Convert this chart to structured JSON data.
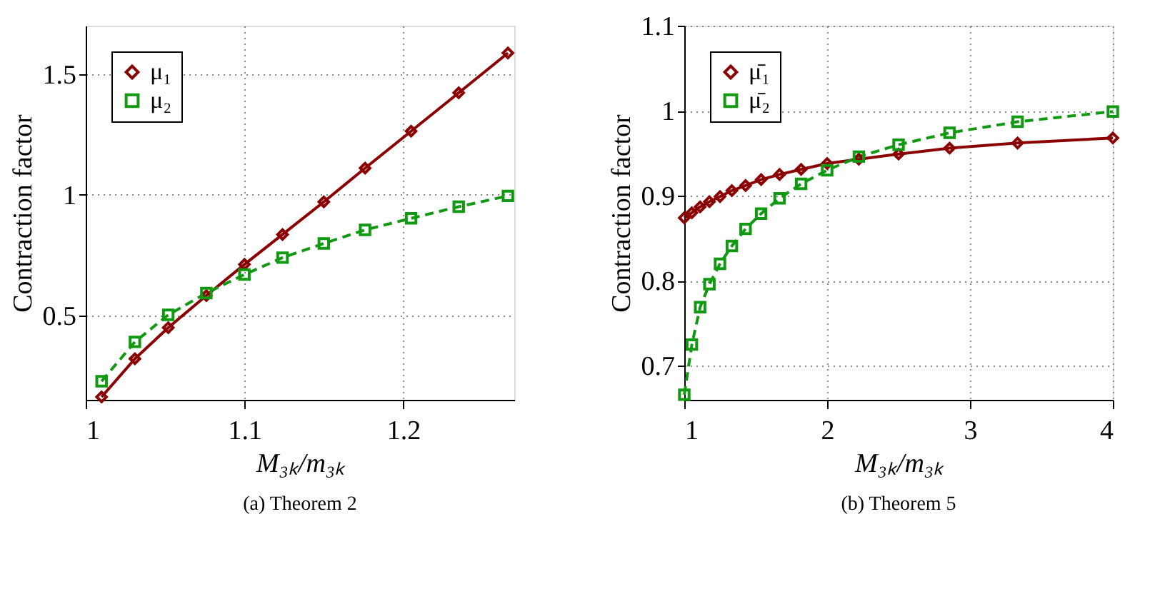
{
  "chart_data": [
    {
      "type": "line",
      "title": "(a) Theorem 2",
      "xlabel": "M₃ₖ/m₃ₖ",
      "ylabel": "Contraction factor",
      "x": [
        1.01,
        1.031,
        1.052,
        1.076,
        1.1,
        1.124,
        1.15,
        1.176,
        1.205,
        1.235,
        1.266
      ],
      "xlim": [
        1,
        1.27
      ],
      "xticks": [
        1,
        1.1,
        1.2
      ],
      "ylim": [
        0.15,
        1.7
      ],
      "yticks": [
        0.5,
        1,
        1.5
      ],
      "grid": true,
      "legend": "top left",
      "series": [
        {
          "name": "μ₁",
          "color": "#8b0000",
          "marker": "diamond",
          "line_style": "solid",
          "values": [
            0.162,
            0.32,
            0.449,
            0.582,
            0.711,
            0.835,
            0.97,
            1.11,
            1.263,
            1.422,
            1.587
          ]
        },
        {
          "name": "μ₂",
          "color": "#119911",
          "marker": "square",
          "line_style": "dashed",
          "values": [
            0.227,
            0.39,
            0.502,
            0.592,
            0.669,
            0.739,
            0.798,
            0.854,
            0.902,
            0.95,
            0.995
          ]
        }
      ]
    },
    {
      "type": "line",
      "title": "(b) Theorem 5",
      "xlabel": "M₃ₖ/m₃ₖ",
      "ylabel": "Contraction factor",
      "x": [
        1,
        1.053,
        1.111,
        1.176,
        1.25,
        1.333,
        1.429,
        1.538,
        1.667,
        1.818,
        2,
        2.222,
        2.5,
        2.857,
        3.333,
        4
      ],
      "xlim": [
        1,
        4
      ],
      "xticks": [
        1,
        2,
        3,
        4
      ],
      "ylim": [
        0.66,
        1.1
      ],
      "yticks": [
        0.7,
        0.8,
        0.9,
        1,
        1.1
      ],
      "grid": true,
      "legend": "top left",
      "series": [
        {
          "name": "μ̄₁",
          "color": "#8b0000",
          "marker": "diamond",
          "line_style": "solid",
          "values": [
            0.874,
            0.88,
            0.887,
            0.893,
            0.899,
            0.906,
            0.912,
            0.919,
            0.925,
            0.931,
            0.938,
            0.943,
            0.949,
            0.956,
            0.962,
            0.968
          ]
        },
        {
          "name": "μ̄₂",
          "color": "#119911",
          "marker": "square",
          "line_style": "dashed",
          "values": [
            0.666,
            0.725,
            0.769,
            0.796,
            0.82,
            0.841,
            0.861,
            0.879,
            0.897,
            0.914,
            0.93,
            0.946,
            0.96,
            0.974,
            0.987,
            0.999
          ]
        }
      ]
    }
  ]
}
